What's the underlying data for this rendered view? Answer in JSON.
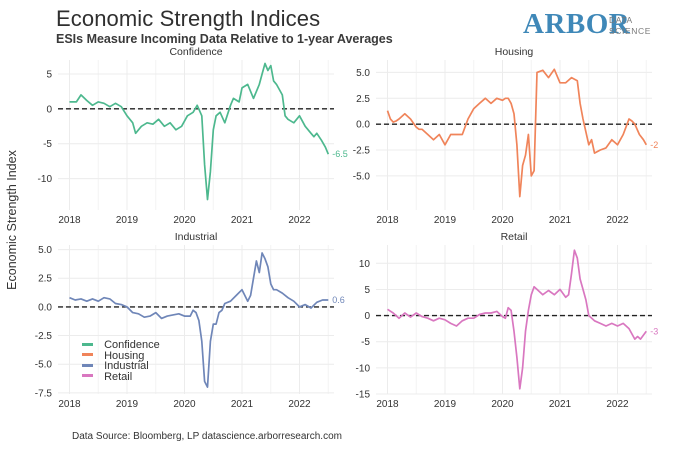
{
  "header": {
    "title": "Economic Strength Indices",
    "subtitle": "ESIs Measure Incoming Data Relative to 1-year Averages"
  },
  "logo": {
    "word": "ARBOR",
    "line1": "DATA",
    "line2": "SCIENCE"
  },
  "y_axis_label": "Economic Strength Index",
  "footer": "Data Source: Bloomberg, LP  datascience.arborresearch.com",
  "colors": {
    "confidence": "#4db88e",
    "housing": "#f0845a",
    "industrial": "#6f86b8",
    "retail": "#d977c0",
    "grid": "#ececec",
    "zero_line": "#222222"
  },
  "legend": [
    {
      "label": "Confidence",
      "color": "#4db88e"
    },
    {
      "label": "Housing",
      "color": "#f0845a"
    },
    {
      "label": "Industrial",
      "color": "#6f86b8"
    },
    {
      "label": "Retail",
      "color": "#d977c0"
    }
  ],
  "chart_data": [
    {
      "type": "line",
      "id": "confidence",
      "title": "Confidence",
      "xlabel": "",
      "ylabel": "Economic Strength Index",
      "x_ticks": [
        "2018",
        "2019",
        "2020",
        "2021",
        "2022"
      ],
      "xlim": [
        2017.8,
        2022.6
      ],
      "ylim": [
        -14.5,
        7
      ],
      "y_ticks": [
        5,
        0,
        -5,
        -10
      ],
      "y_tick_labels": [
        "5",
        "0",
        "-5",
        "-10"
      ],
      "end_label": "-6.5",
      "color": "#4db88e",
      "x": [
        2018.0,
        2018.12,
        2018.2,
        2018.3,
        2018.4,
        2018.5,
        2018.6,
        2018.7,
        2018.8,
        2018.9,
        2019.0,
        2019.1,
        2019.15,
        2019.25,
        2019.35,
        2019.45,
        2019.55,
        2019.65,
        2019.75,
        2019.85,
        2019.95,
        2020.05,
        2020.15,
        2020.22,
        2020.3,
        2020.35,
        2020.4,
        2020.45,
        2020.5,
        2020.55,
        2020.62,
        2020.7,
        2020.8,
        2020.85,
        2020.95,
        2021.0,
        2021.1,
        2021.2,
        2021.3,
        2021.35,
        2021.4,
        2021.45,
        2021.5,
        2021.55,
        2021.6,
        2021.7,
        2021.75,
        2021.8,
        2021.9,
        2022.0,
        2022.1,
        2022.2,
        2022.25,
        2022.3,
        2022.38,
        2022.45,
        2022.5
      ],
      "y": [
        1.0,
        1.0,
        2.0,
        1.2,
        0.5,
        1.0,
        0.8,
        0.3,
        0.8,
        0.3,
        -1.0,
        -2.0,
        -3.5,
        -2.5,
        -2.0,
        -2.2,
        -1.5,
        -2.5,
        -2.0,
        -3.0,
        -2.5,
        -1.0,
        -0.5,
        0.5,
        -1.0,
        -8.0,
        -13.0,
        -9.0,
        -3.0,
        -1.0,
        -0.5,
        -2.0,
        0.5,
        1.5,
        1.0,
        3.0,
        3.5,
        1.5,
        3.5,
        5.0,
        6.5,
        5.5,
        6.2,
        4.0,
        3.5,
        2.0,
        -1.0,
        -1.5,
        -2.0,
        -1.0,
        -2.5,
        -3.5,
        -4.0,
        -3.5,
        -4.5,
        -5.5,
        -6.5
      ]
    },
    {
      "type": "line",
      "id": "housing",
      "title": "Housing",
      "xlabel": "",
      "ylabel": "",
      "x_ticks": [
        "2018",
        "2019",
        "2020",
        "2021",
        "2022"
      ],
      "xlim": [
        2017.8,
        2022.6
      ],
      "ylim": [
        -8.3,
        6.2
      ],
      "y_ticks": [
        5,
        2.5,
        0,
        -2.5,
        -5
      ],
      "y_tick_labels": [
        "5.0",
        "2.5",
        "0.0",
        "-2.5",
        "-5.0"
      ],
      "end_label": "-2",
      "color": "#f0845a",
      "x": [
        2018.0,
        2018.05,
        2018.1,
        2018.15,
        2018.2,
        2018.3,
        2018.4,
        2018.5,
        2018.55,
        2018.6,
        2018.7,
        2018.8,
        2018.9,
        2019.0,
        2019.1,
        2019.2,
        2019.3,
        2019.4,
        2019.5,
        2019.6,
        2019.7,
        2019.8,
        2019.9,
        2020.0,
        2020.05,
        2020.1,
        2020.15,
        2020.2,
        2020.25,
        2020.3,
        2020.35,
        2020.4,
        2020.45,
        2020.5,
        2020.55,
        2020.6,
        2020.7,
        2020.8,
        2020.9,
        2021.0,
        2021.1,
        2021.2,
        2021.3,
        2021.35,
        2021.4,
        2021.5,
        2021.55,
        2021.6,
        2021.7,
        2021.8,
        2021.9,
        2022.0,
        2022.1,
        2022.2,
        2022.25,
        2022.3,
        2022.38,
        2022.45,
        2022.5
      ],
      "y": [
        1.3,
        0.5,
        0.2,
        0.3,
        0.5,
        1.0,
        0.5,
        -0.3,
        -0.5,
        -0.5,
        -1.0,
        -1.5,
        -1.0,
        -2.0,
        -1.0,
        -1.0,
        -1.0,
        0.5,
        1.5,
        2.0,
        2.5,
        2.0,
        2.5,
        2.3,
        2.5,
        2.5,
        2.0,
        1.0,
        -2.0,
        -7.0,
        -4.0,
        -3.0,
        -1.0,
        -5.0,
        -4.5,
        5.0,
        5.2,
        4.5,
        5.3,
        4.0,
        4.0,
        4.5,
        4.2,
        2.0,
        0.5,
        -2.0,
        -1.5,
        -2.8,
        -2.5,
        -2.3,
        -1.5,
        -2.0,
        -1.0,
        0.5,
        0.3,
        0.0,
        -1.0,
        -1.5,
        -2.0
      ]
    },
    {
      "type": "line",
      "id": "industrial",
      "title": "Industrial",
      "xlabel": "",
      "ylabel": "",
      "x_ticks": [
        "2018",
        "2019",
        "2020",
        "2021",
        "2022"
      ],
      "xlim": [
        2017.8,
        2022.6
      ],
      "ylim": [
        -7.6,
        5.4
      ],
      "y_ticks": [
        5,
        2.5,
        0,
        -2.5,
        -5,
        -7.5
      ],
      "y_tick_labels": [
        "5.0",
        "2.5",
        "0.0",
        "-2.5",
        "-5.0",
        "-7.5"
      ],
      "end_label": "0.6",
      "color": "#6f86b8",
      "x": [
        2018.0,
        2018.1,
        2018.2,
        2018.3,
        2018.4,
        2018.5,
        2018.6,
        2018.7,
        2018.8,
        2018.9,
        2019.0,
        2019.1,
        2019.2,
        2019.3,
        2019.4,
        2019.5,
        2019.6,
        2019.7,
        2019.8,
        2019.9,
        2020.0,
        2020.1,
        2020.15,
        2020.2,
        2020.25,
        2020.3,
        2020.35,
        2020.4,
        2020.45,
        2020.5,
        2020.55,
        2020.6,
        2020.65,
        2020.7,
        2020.8,
        2020.9,
        2021.0,
        2021.1,
        2021.15,
        2021.2,
        2021.25,
        2021.3,
        2021.35,
        2021.4,
        2021.45,
        2021.5,
        2021.55,
        2021.6,
        2021.7,
        2021.8,
        2021.9,
        2022.0,
        2022.1,
        2022.2,
        2022.3,
        2022.4,
        2022.5
      ],
      "y": [
        0.8,
        0.6,
        0.7,
        0.5,
        0.7,
        0.5,
        0.8,
        0.7,
        0.3,
        0.2,
        0.0,
        -0.5,
        -0.6,
        -0.9,
        -0.8,
        -0.5,
        -1.0,
        -0.8,
        -0.7,
        -0.6,
        -0.8,
        -0.8,
        -0.3,
        -0.5,
        -1.2,
        -3.0,
        -6.5,
        -7.0,
        -3.0,
        -1.5,
        -1.5,
        -0.5,
        -0.3,
        0.3,
        0.5,
        1.0,
        1.5,
        0.5,
        1.0,
        2.5,
        4.0,
        3.0,
        4.7,
        4.2,
        3.5,
        2.0,
        1.5,
        1.5,
        1.2,
        0.8,
        0.5,
        0.0,
        0.2,
        -0.1,
        0.4,
        0.6,
        0.6
      ]
    },
    {
      "type": "line",
      "id": "retail",
      "title": "Retail",
      "xlabel": "",
      "ylabel": "",
      "x_ticks": [
        "2018",
        "2019",
        "2020",
        "2021",
        "2022"
      ],
      "xlim": [
        2017.8,
        2022.6
      ],
      "ylim": [
        -15,
        13.5
      ],
      "y_ticks": [
        10,
        5,
        0,
        -5,
        -10,
        -15
      ],
      "y_tick_labels": [
        "10",
        "5",
        "0",
        "-5",
        "-10",
        "-15"
      ],
      "end_label": "-3",
      "color": "#d977c0",
      "x": [
        2018.0,
        2018.1,
        2018.2,
        2018.3,
        2018.4,
        2018.5,
        2018.6,
        2018.7,
        2018.8,
        2018.9,
        2019.0,
        2019.1,
        2019.2,
        2019.3,
        2019.4,
        2019.5,
        2019.6,
        2019.7,
        2019.8,
        2019.9,
        2020.0,
        2020.05,
        2020.1,
        2020.15,
        2020.2,
        2020.25,
        2020.3,
        2020.35,
        2020.4,
        2020.45,
        2020.5,
        2020.55,
        2020.6,
        2020.7,
        2020.8,
        2020.9,
        2021.0,
        2021.1,
        2021.15,
        2021.2,
        2021.25,
        2021.3,
        2021.35,
        2021.4,
        2021.45,
        2021.5,
        2021.6,
        2021.7,
        2021.8,
        2021.9,
        2022.0,
        2022.1,
        2022.2,
        2022.3,
        2022.35,
        2022.4,
        2022.5
      ],
      "y": [
        1.2,
        0.5,
        -0.5,
        0.5,
        -0.3,
        0.5,
        -0.2,
        -0.5,
        -1.0,
        -0.5,
        -0.8,
        -1.5,
        -2.0,
        -1.0,
        -0.5,
        -0.5,
        0.2,
        0.5,
        0.5,
        0.8,
        -0.2,
        -0.5,
        1.5,
        1.0,
        -3.0,
        -8.0,
        -14.0,
        -10.0,
        -3.0,
        1.0,
        4.0,
        5.5,
        5.0,
        4.0,
        4.8,
        4.0,
        5.0,
        3.5,
        4.0,
        8.0,
        12.5,
        11.0,
        7.0,
        5.0,
        3.0,
        0.0,
        -1.0,
        -1.5,
        -2.0,
        -1.5,
        -2.0,
        -1.5,
        -2.5,
        -4.5,
        -4.0,
        -4.5,
        -3.0
      ]
    }
  ]
}
